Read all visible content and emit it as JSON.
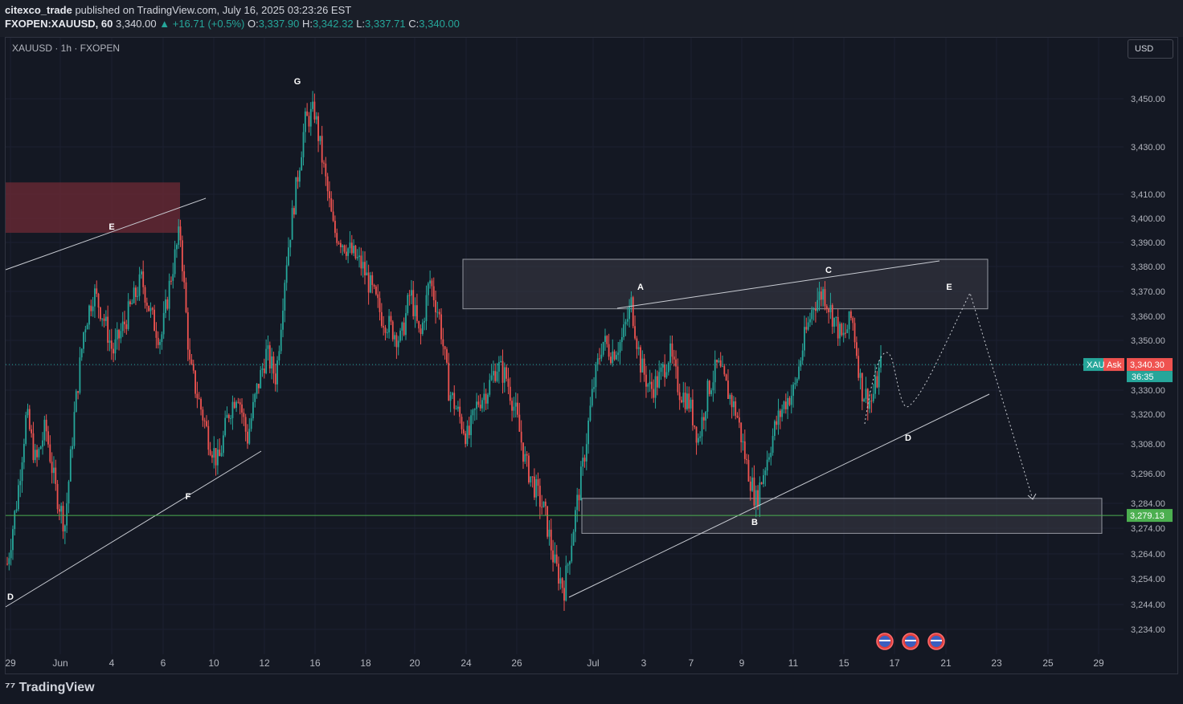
{
  "header": {
    "author": "citexco_trade",
    "published": "published on TradingView.com, July 16, 2025 03:23:26 EST",
    "symbol": "FXOPEN:XAUUSD, 60",
    "last": "3,340.00",
    "change": "+16.71 (+0.5%)",
    "o_label": "O:",
    "o": "3,337.90",
    "h_label": "H:",
    "h": "3,342.32",
    "l_label": "L:",
    "l": "3,337.71",
    "c_label": "C:",
    "c": "3,340.00"
  },
  "chart_label": "XAUUSD · 1h · FXOPEN",
  "currency_button": "USD",
  "brand": "TradingView",
  "colors": {
    "up": "#26a69a",
    "down": "#ef5350",
    "background": "#141823",
    "zone_red": "#6e2a35",
    "support_line": "#4caf50"
  },
  "chart_data": {
    "type": "candlestick",
    "price_axis": {
      "ticks": [
        3450,
        3430,
        3410,
        3400,
        3390,
        3380,
        3370,
        3360,
        3350,
        3340,
        3330,
        3320,
        3308,
        3296,
        3284,
        3274,
        3264,
        3254,
        3244,
        3234
      ],
      "tick_labels": [
        "3,450.00",
        "3,430.00",
        "3,410.00",
        "3,400.00",
        "3,390.00",
        "3,380.00",
        "3,370.00",
        "3,360.00",
        "3,350.00",
        "",
        "3,330.00",
        "3,320.00",
        "3,308.00",
        "3,296.00",
        "3,284.00",
        "3,274.00",
        "3,264.00",
        "3,254.00",
        "3,244.00",
        "3,234.00"
      ]
    },
    "time_axis": {
      "labels": [
        "29",
        "Jun",
        "4",
        "6",
        "10",
        "12",
        "16",
        "18",
        "20",
        "24",
        "26",
        "Jul",
        "3",
        "7",
        "9",
        "11",
        "15",
        "17",
        "21",
        "23",
        "25",
        "29"
      ]
    },
    "ask_badge": {
      "label": "XAU Ask",
      "price": "3,340.30",
      "countdown": "36:35",
      "value": 3340.3
    },
    "support_badge": {
      "price": "3,279.13",
      "value": 3279.13
    },
    "wave_labels": [
      "D",
      "E",
      "F",
      "G",
      "A",
      "B",
      "C",
      "D",
      "E"
    ],
    "close_path": [
      3260,
      3285,
      3320,
      3300,
      3315,
      3290,
      3275,
      3320,
      3355,
      3370,
      3360,
      3345,
      3355,
      3365,
      3375,
      3360,
      3350,
      3375,
      3395,
      3340,
      3325,
      3310,
      3300,
      3320,
      3330,
      3310,
      3330,
      3345,
      3335,
      3380,
      3410,
      3440,
      3445,
      3420,
      3395,
      3390,
      3385,
      3380,
      3370,
      3360,
      3355,
      3350,
      3370,
      3350,
      3375,
      3360,
      3330,
      3320,
      3310,
      3325,
      3330,
      3340,
      3335,
      3320,
      3300,
      3290,
      3280,
      3260,
      3250,
      3275,
      3300,
      3330,
      3350,
      3345,
      3350,
      3365,
      3340,
      3330,
      3335,
      3345,
      3330,
      3325,
      3310,
      3330,
      3340,
      3330,
      3320,
      3300,
      3285,
      3300,
      3315,
      3325,
      3330,
      3350,
      3365,
      3370,
      3360,
      3350,
      3360,
      3330,
      3325,
      3340
    ],
    "zones": [
      {
        "name": "red resistance zone",
        "top": 3415,
        "bottom": 3394
      },
      {
        "name": "upper grey zone",
        "top": 3383,
        "bottom": 3363
      },
      {
        "name": "lower grey zone",
        "top": 3286,
        "bottom": 3272
      }
    ]
  }
}
